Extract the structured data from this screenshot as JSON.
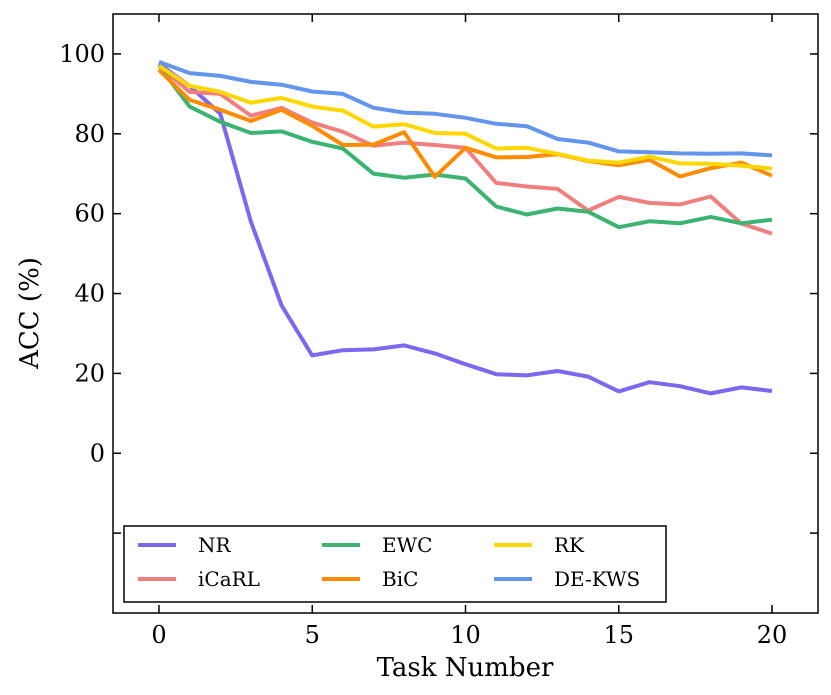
{
  "chart_data": {
    "type": "line",
    "title": "",
    "xlabel": "Task Number",
    "ylabel": "ACC (%)",
    "xlim": [
      -1.5,
      21.5
    ],
    "ylim": [
      -40,
      110
    ],
    "xticks": [
      0,
      5,
      10,
      15,
      20
    ],
    "yticks": [
      0,
      20,
      40,
      60,
      80,
      100
    ],
    "minor_yticks": [
      -20
    ],
    "grid": false,
    "legend_position": "bottom-left",
    "legend_columns": 3,
    "x": [
      0,
      1,
      2,
      3,
      4,
      5,
      6,
      7,
      8,
      9,
      10,
      11,
      12,
      13,
      14,
      15,
      16,
      17,
      18,
      19,
      20
    ],
    "series": [
      {
        "name": "NR",
        "color": "#7b68ee",
        "values": [
          97.5,
          92,
          85,
          58,
          37,
          24.5,
          25.8,
          26,
          27,
          25,
          22.3,
          19.8,
          19.5,
          20.6,
          19.2,
          15.5,
          17.8,
          16.8,
          15,
          16.5,
          15.6
        ]
      },
      {
        "name": "iCaRL",
        "color": "#f08080",
        "values": [
          97,
          90.5,
          90,
          84.5,
          86.5,
          82.8,
          80.5,
          77,
          77.8,
          77.2,
          76.5,
          67.7,
          66.8,
          66.2,
          60.8,
          64.2,
          62.7,
          62.3,
          64.3,
          57.5,
          55
        ]
      },
      {
        "name": "EWC",
        "color": "#3cb371",
        "values": [
          97,
          86.8,
          83,
          80.2,
          80.6,
          78,
          76.3,
          70,
          69,
          69.8,
          68.8,
          61.8,
          59.8,
          61.3,
          60.5,
          56.6,
          58.1,
          57.6,
          59.2,
          57.6,
          58.5
        ]
      },
      {
        "name": "BiC",
        "color": "#ff8c00",
        "values": [
          96,
          88.5,
          86,
          83.2,
          86,
          82,
          77.2,
          77.3,
          80.4,
          69.2,
          76.5,
          74.1,
          74.2,
          74.9,
          73.2,
          72.1,
          73.5,
          69.3,
          71.4,
          72.8,
          69.5
        ]
      },
      {
        "name": "RK",
        "color": "#ffd700",
        "values": [
          97,
          92,
          90.5,
          87.8,
          89,
          86.8,
          85.8,
          81.8,
          82.4,
          80.2,
          80,
          76.3,
          76.5,
          75,
          73.3,
          72.8,
          74.3,
          72.6,
          72.5,
          72,
          71.3
        ]
      },
      {
        "name": "DE-KWS",
        "color": "#6495ed",
        "values": [
          98,
          95.2,
          94.5,
          93,
          92.3,
          90.6,
          90,
          86.5,
          85.3,
          85,
          84,
          82.5,
          81.9,
          78.7,
          77.8,
          75.6,
          75.4,
          75.1,
          75,
          75.1,
          74.6
        ]
      }
    ]
  }
}
